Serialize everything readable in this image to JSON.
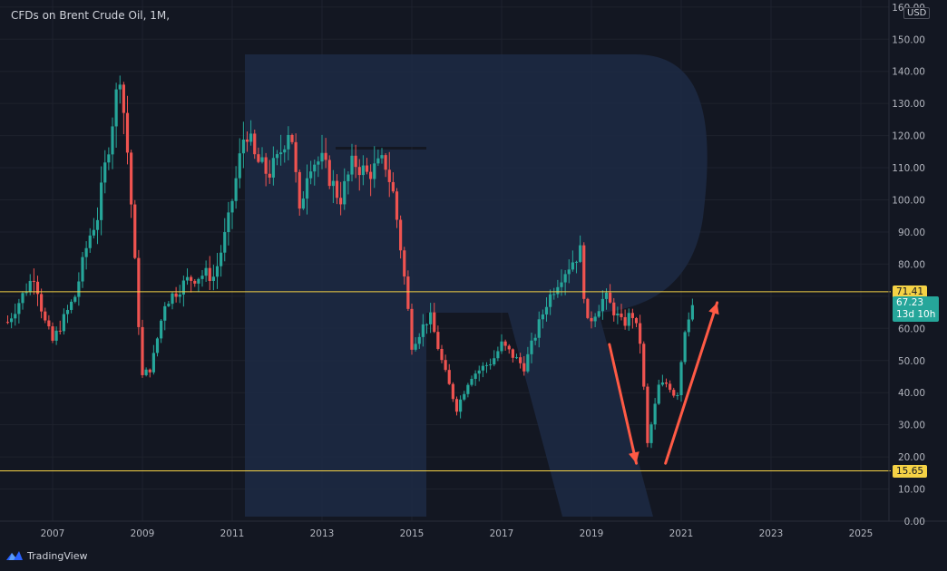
{
  "header": {
    "symbol_title": "CFDs on Brent Crude Oil, 1M,",
    "currency": "USD"
  },
  "brand": {
    "name": "TradingView"
  },
  "price_labels": {
    "resistance": "71.41",
    "support": "15.65",
    "current_price": "67.23",
    "countdown": "13d 10h"
  },
  "colors": {
    "background": "#131722",
    "up": "#26a69a",
    "down": "#ef5350",
    "level_line": "#f5d245",
    "watermark": "#1d2a44",
    "arrow": "#ff5a45"
  },
  "chart_data": {
    "type": "candlestick",
    "interval": "1M",
    "title": "CFDs on Brent Crude Oil, 1M,",
    "y_unit": "USD",
    "ylim": [
      0,
      160
    ],
    "y_ticks": [
      "0.00",
      "10.00",
      "20.00",
      "30.00",
      "40.00",
      "50.00",
      "60.00",
      "70.00",
      "80.00",
      "90.00",
      "100.00",
      "110.00",
      "120.00",
      "130.00",
      "140.00",
      "150.00",
      "160.00"
    ],
    "x_ticks": [
      "2007",
      "2009",
      "2011",
      "2013",
      "2015",
      "2017",
      "2019",
      "2021",
      "2023",
      "2025"
    ],
    "x_range_years": [
      2006.0,
      2026.3
    ],
    "horizontal_levels": [
      71.41,
      15.65
    ],
    "last_price": 67.23,
    "annotations": [
      {
        "type": "arrow",
        "direction": "down",
        "from": [
          2019.4,
          55
        ],
        "to": [
          2020.0,
          18
        ]
      },
      {
        "type": "arrow",
        "direction": "up",
        "from": [
          2020.65,
          18
        ],
        "to": [
          2021.8,
          68
        ]
      }
    ],
    "price_path": [
      [
        2006.0,
        62
      ],
      [
        2006.6,
        77
      ],
      [
        2006.8,
        63
      ],
      [
        2007.0,
        56
      ],
      [
        2007.5,
        70
      ],
      [
        2007.8,
        88
      ],
      [
        2008.0,
        95
      ],
      [
        2008.5,
        140
      ],
      [
        2008.7,
        110
      ],
      [
        2008.9,
        65
      ],
      [
        2009.0,
        45
      ],
      [
        2009.2,
        48
      ],
      [
        2009.5,
        68
      ],
      [
        2010.0,
        75
      ],
      [
        2010.4,
        77
      ],
      [
        2010.6,
        76
      ],
      [
        2010.9,
        92
      ],
      [
        2011.0,
        100
      ],
      [
        2011.3,
        123
      ],
      [
        2011.5,
        113
      ],
      [
        2011.8,
        108
      ],
      [
        2012.0,
        112
      ],
      [
        2012.3,
        124
      ],
      [
        2012.5,
        95
      ],
      [
        2012.7,
        112
      ],
      [
        2013.0,
        112
      ],
      [
        2013.4,
        100
      ],
      [
        2013.7,
        112
      ],
      [
        2014.0,
        108
      ],
      [
        2014.4,
        112
      ],
      [
        2014.6,
        101
      ],
      [
        2014.8,
        80
      ],
      [
        2015.0,
        55
      ],
      [
        2015.4,
        64
      ],
      [
        2015.7,
        48
      ],
      [
        2016.0,
        35
      ],
      [
        2016.3,
        45
      ],
      [
        2016.8,
        50
      ],
      [
        2017.0,
        55
      ],
      [
        2017.5,
        48
      ],
      [
        2017.8,
        60
      ],
      [
        2018.0,
        68
      ],
      [
        2018.3,
        76
      ],
      [
        2018.75,
        84
      ],
      [
        2018.9,
        61
      ],
      [
        2019.3,
        70
      ],
      [
        2019.7,
        61
      ],
      [
        2019.9,
        65
      ],
      [
        2020.1,
        55
      ],
      [
        2020.25,
        24
      ],
      [
        2020.5,
        42
      ],
      [
        2020.7,
        43
      ],
      [
        2020.9,
        38
      ],
      [
        2021.1,
        62
      ],
      [
        2021.25,
        67.23
      ]
    ]
  }
}
